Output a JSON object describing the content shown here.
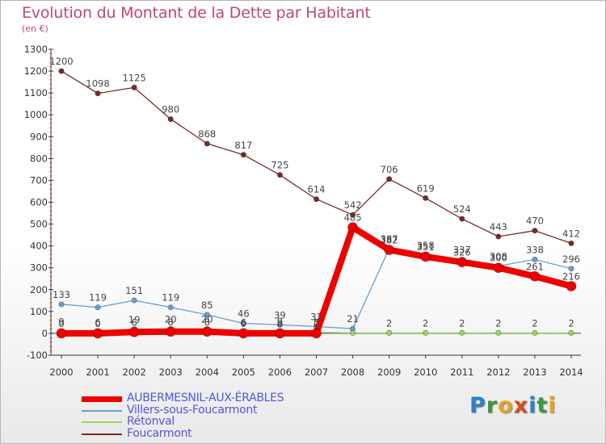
{
  "title": "Evolution du Montant de la Dette par Habitant",
  "unit_label": "(en €)",
  "logo": {
    "letters": [
      {
        "ch": "P",
        "color": "#2f7fc9"
      },
      {
        "ch": "r",
        "color": "#3a9a3a"
      },
      {
        "ch": "o",
        "color": "#e8a21b"
      },
      {
        "ch": "x",
        "color": "#d94b1d"
      },
      {
        "ch": "i",
        "color": "#2f7fc9"
      },
      {
        "ch": "t",
        "color": "#3a9a3a"
      },
      {
        "ch": "i",
        "color": "#e8a21b"
      }
    ]
  },
  "chart_data": {
    "type": "line",
    "categories": [
      "2000",
      "2001",
      "2002",
      "2003",
      "2004",
      "2005",
      "2006",
      "2007",
      "2008",
      "2009",
      "2010",
      "2011",
      "2012",
      "2013",
      "2014"
    ],
    "ylim": [
      -100,
      1300
    ],
    "yticks": [
      -100,
      0,
      100,
      200,
      300,
      400,
      500,
      600,
      700,
      800,
      900,
      1000,
      1100,
      1200,
      1300
    ],
    "grid": false,
    "legend_position": "bottom-left",
    "series": [
      {
        "name": "Foucarmont",
        "color": "#7a2a2a",
        "width": 1.3,
        "marker": 3.2,
        "values": [
          1200,
          1098,
          1125,
          980,
          868,
          817,
          725,
          614,
          542,
          706,
          619,
          524,
          443,
          470,
          412
        ],
        "labels": [
          "1200",
          "1098",
          "1125",
          "980",
          "868",
          "817",
          "725",
          "614",
          "542",
          "706",
          "619",
          "524",
          "443",
          "470",
          "412"
        ]
      },
      {
        "name": "Villers-sous-Foucarmont",
        "color": "#6a9ed0",
        "width": 1.3,
        "marker": 3.2,
        "values": [
          133,
          119,
          151,
          119,
          85,
          46,
          39,
          31,
          21,
          387,
          358,
          337,
          308,
          338,
          296
        ],
        "labels": [
          "133",
          "119",
          "151",
          "119",
          "85",
          "46",
          "39",
          "31",
          "21",
          "387",
          "358",
          "337",
          "308",
          "338",
          "296"
        ]
      },
      {
        "name": "Rétonval",
        "color": "#9ad85a",
        "width": 1.3,
        "marker": 3.2,
        "values": [
          9,
          6,
          19,
          20,
          20,
          6,
          9,
          5,
          2,
          2,
          2,
          2,
          2,
          2,
          2
        ],
        "labels": [
          "9",
          "6",
          "19",
          "20",
          "20",
          "6",
          "9",
          "5",
          "",
          "2",
          "2",
          "2",
          "2",
          "2",
          "2"
        ]
      },
      {
        "name": "AUBERMESNIL-AUX-ÉRABLES",
        "color": "#ee0000",
        "width": 8,
        "marker": 6,
        "values": [
          0,
          0,
          6,
          8,
          8,
          0,
          0,
          0,
          485,
          382,
          351,
          326,
          300,
          261,
          216
        ],
        "labels": [
          "0",
          "0",
          "6",
          "8",
          "8",
          "0",
          "0",
          "0",
          "485",
          "382",
          "351",
          "326",
          "300",
          "261",
          "216"
        ]
      }
    ]
  },
  "legend": [
    {
      "name": "AUBERMESNIL-AUX-ÉRABLES",
      "color": "#ee0000",
      "thickness": 7
    },
    {
      "name": "Villers-sous-Foucarmont",
      "color": "#6a9ed0",
      "thickness": 2
    },
    {
      "name": "Rétonval",
      "color": "#9ad85a",
      "thickness": 2
    },
    {
      "name": "Foucarmont",
      "color": "#7a2a2a",
      "thickness": 2
    }
  ]
}
